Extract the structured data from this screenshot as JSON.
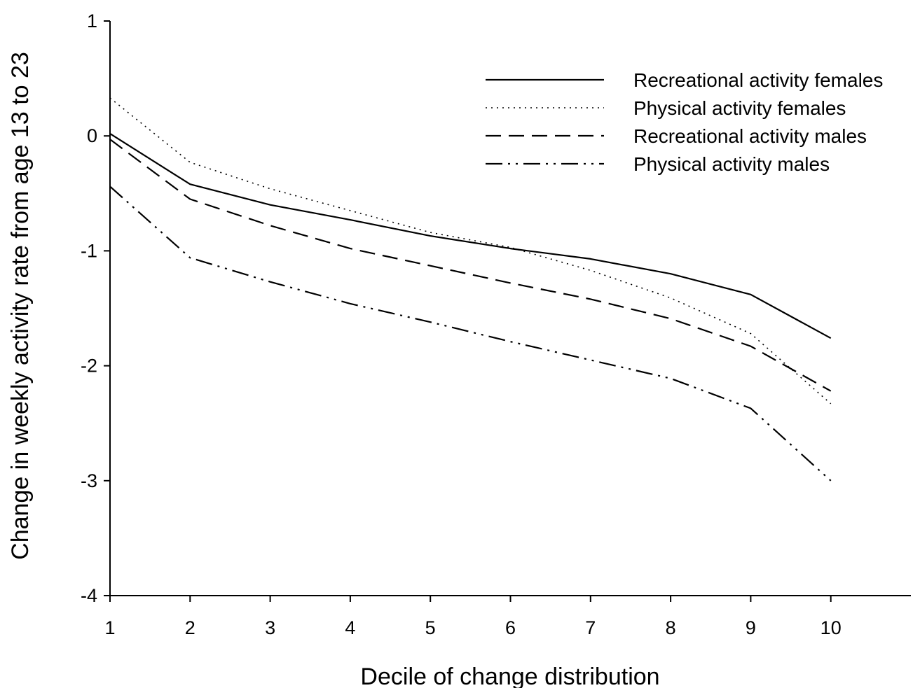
{
  "chart_data": {
    "type": "line",
    "title": "",
    "xlabel": "Decile of change distribution",
    "ylabel": "Change in weekly activity rate from age 13 to 23",
    "x": [
      1,
      2,
      3,
      4,
      5,
      6,
      7,
      8,
      9,
      10
    ],
    "x_ticks": [
      "1",
      "2",
      "3",
      "4",
      "5",
      "6",
      "7",
      "8",
      "9",
      "10"
    ],
    "y_ticks": [
      "1",
      "0",
      "-1",
      "-2",
      "-3",
      "-4"
    ],
    "xlim": [
      1,
      11
    ],
    "ylim": [
      -4,
      1
    ],
    "grid": false,
    "legend_position": "top-right",
    "series": [
      {
        "name": "Recreational activity females",
        "line_style": "solid",
        "color": "#000000",
        "values": [
          0.02,
          -0.42,
          -0.6,
          -0.73,
          -0.87,
          -0.98,
          -1.07,
          -1.2,
          -1.38,
          -1.76
        ]
      },
      {
        "name": "Physical activity females",
        "line_style": "dotted",
        "color": "#000000",
        "values": [
          0.33,
          -0.23,
          -0.46,
          -0.65,
          -0.84,
          -0.97,
          -1.17,
          -1.41,
          -1.72,
          -2.33
        ]
      },
      {
        "name": "Recreational activity males",
        "line_style": "dashed",
        "color": "#000000",
        "values": [
          -0.03,
          -0.55,
          -0.78,
          -0.98,
          -1.13,
          -1.28,
          -1.42,
          -1.59,
          -1.83,
          -2.22
        ]
      },
      {
        "name": "Physical activity males",
        "line_style": "dash-dot-dot",
        "color": "#000000",
        "values": [
          -0.44,
          -1.06,
          -1.27,
          -1.46,
          -1.62,
          -1.79,
          -1.95,
          -2.11,
          -2.37,
          -3.0
        ]
      }
    ]
  }
}
